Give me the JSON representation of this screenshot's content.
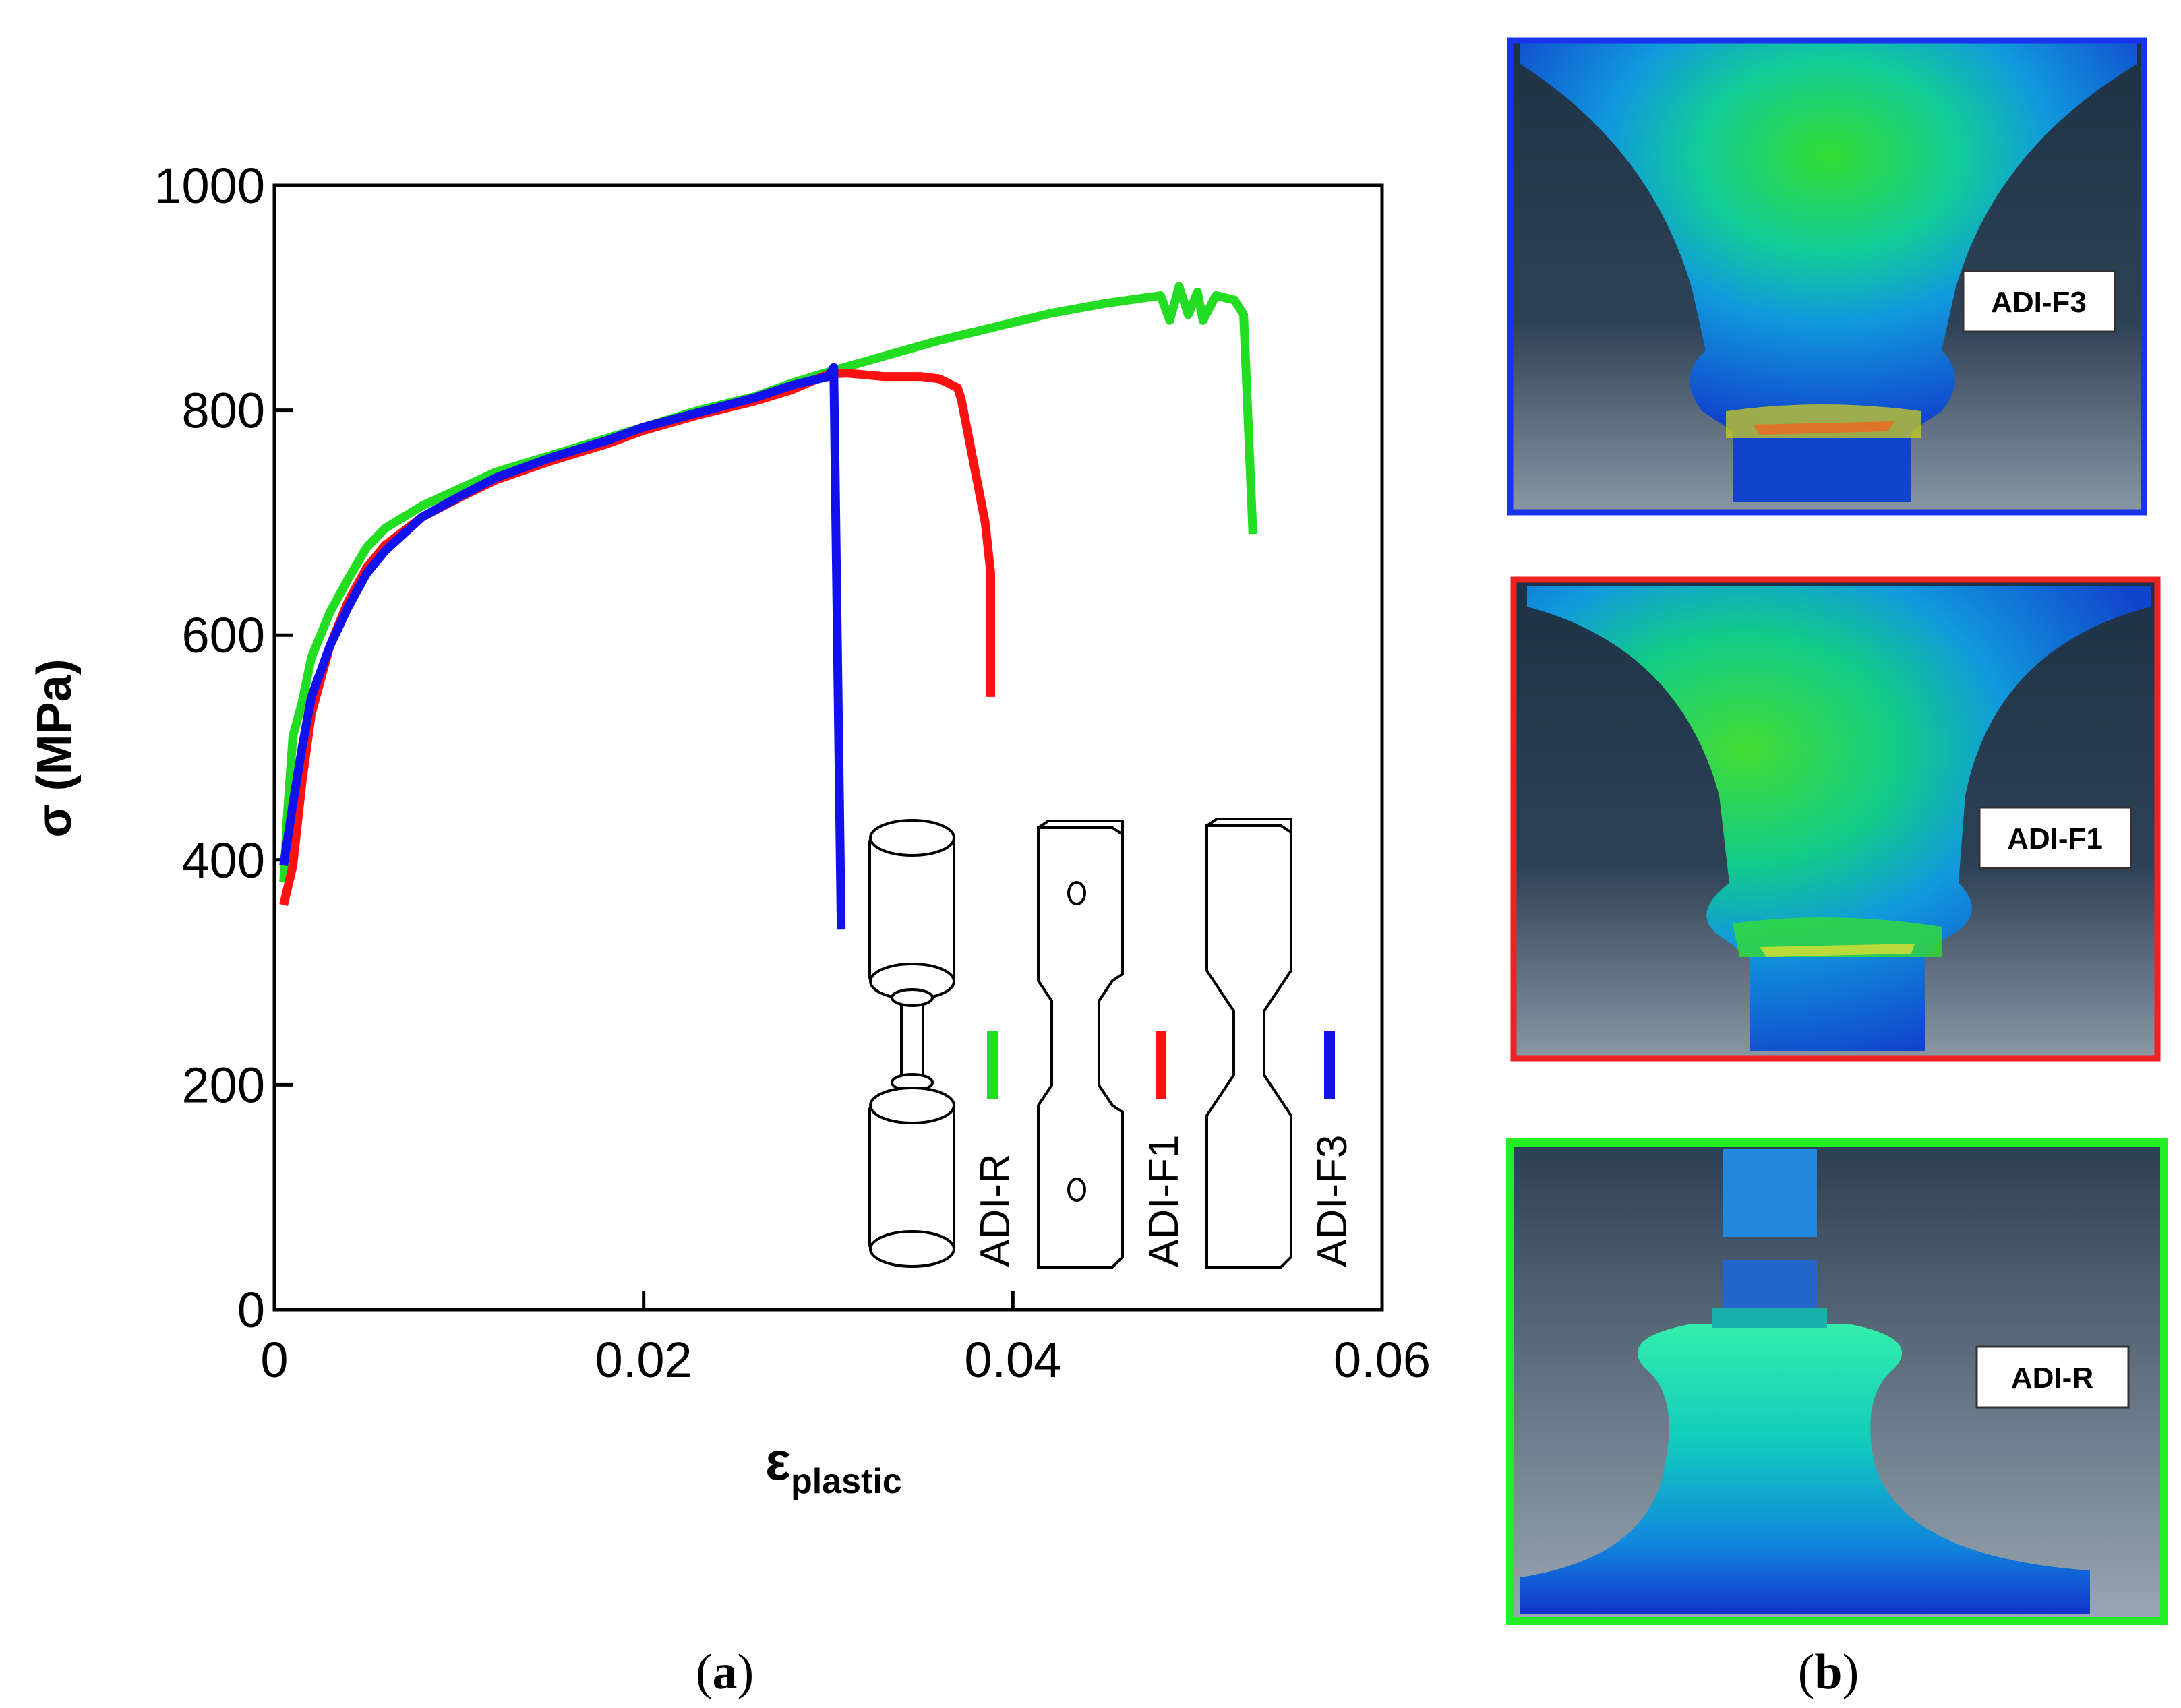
{
  "chart_data": {
    "type": "line",
    "xlabel": "ε",
    "xlabel_sub": "plastic",
    "ylabel": "σ (MPa)",
    "xlim": [
      0,
      0.06
    ],
    "ylim": [
      0,
      1000
    ],
    "x_ticks": [
      0,
      0.02,
      0.04,
      0.06
    ],
    "x_tick_labels": [
      "0",
      "0.02",
      "0.04",
      "0.06"
    ],
    "y_ticks": [
      0,
      200,
      400,
      600,
      800,
      1000
    ],
    "y_tick_labels": [
      "0",
      "200",
      "400",
      "600",
      "800",
      "1000"
    ],
    "grid": false,
    "series": [
      {
        "name": "ADI-R",
        "color": "#22dd22",
        "points": [
          [
            0.0005,
            380
          ],
          [
            0.0007,
            440
          ],
          [
            0.001,
            510
          ],
          [
            0.0015,
            540
          ],
          [
            0.002,
            580
          ],
          [
            0.003,
            620
          ],
          [
            0.004,
            650
          ],
          [
            0.005,
            678
          ],
          [
            0.006,
            695
          ],
          [
            0.008,
            715
          ],
          [
            0.01,
            730
          ],
          [
            0.012,
            745
          ],
          [
            0.015,
            760
          ],
          [
            0.018,
            775
          ],
          [
            0.02,
            785
          ],
          [
            0.023,
            800
          ],
          [
            0.026,
            812
          ],
          [
            0.028,
            824
          ],
          [
            0.03,
            834
          ],
          [
            0.033,
            848
          ],
          [
            0.036,
            862
          ],
          [
            0.039,
            874
          ],
          [
            0.042,
            886
          ],
          [
            0.045,
            895
          ],
          [
            0.048,
            902
          ],
          [
            0.0485,
            880
          ],
          [
            0.049,
            910
          ],
          [
            0.0495,
            885
          ],
          [
            0.05,
            905
          ],
          [
            0.0503,
            880
          ],
          [
            0.051,
            902
          ],
          [
            0.052,
            898
          ],
          [
            0.0525,
            885
          ],
          [
            0.053,
            690
          ]
        ]
      },
      {
        "name": "ADI-F1",
        "color": "#ff1111",
        "points": [
          [
            0.0005,
            360
          ],
          [
            0.001,
            395
          ],
          [
            0.0015,
            470
          ],
          [
            0.002,
            530
          ],
          [
            0.003,
            590
          ],
          [
            0.004,
            630
          ],
          [
            0.005,
            660
          ],
          [
            0.006,
            680
          ],
          [
            0.008,
            705
          ],
          [
            0.01,
            722
          ],
          [
            0.012,
            738
          ],
          [
            0.015,
            755
          ],
          [
            0.018,
            770
          ],
          [
            0.02,
            782
          ],
          [
            0.023,
            796
          ],
          [
            0.026,
            808
          ],
          [
            0.028,
            818
          ],
          [
            0.029,
            825
          ],
          [
            0.03,
            832
          ],
          [
            0.031,
            833
          ],
          [
            0.033,
            830
          ],
          [
            0.035,
            830
          ],
          [
            0.036,
            828
          ],
          [
            0.037,
            820
          ],
          [
            0.0372,
            810
          ],
          [
            0.0385,
            700
          ],
          [
            0.0388,
            655
          ],
          [
            0.0388,
            545
          ]
        ]
      },
      {
        "name": "ADI-F3",
        "color": "#1111ee",
        "points": [
          [
            0.0005,
            395
          ],
          [
            0.001,
            450
          ],
          [
            0.0015,
            500
          ],
          [
            0.002,
            545
          ],
          [
            0.003,
            590
          ],
          [
            0.004,
            625
          ],
          [
            0.005,
            655
          ],
          [
            0.006,
            675
          ],
          [
            0.008,
            705
          ],
          [
            0.01,
            723
          ],
          [
            0.012,
            740
          ],
          [
            0.015,
            758
          ],
          [
            0.018,
            773
          ],
          [
            0.02,
            785
          ],
          [
            0.023,
            798
          ],
          [
            0.026,
            811
          ],
          [
            0.028,
            822
          ],
          [
            0.029,
            826
          ],
          [
            0.03,
            830
          ],
          [
            0.0303,
            838
          ],
          [
            0.0307,
            338
          ]
        ]
      }
    ],
    "inset_labels": [
      "ADI-R",
      "ADI-F1",
      "ADI-F3"
    ],
    "panel_caption": "a"
  },
  "panel_b": {
    "panel_caption": "b",
    "simulations": [
      {
        "label": "ADI-F3",
        "border_color": "#1a33ee"
      },
      {
        "label": "ADI-F1",
        "border_color": "#ee2222"
      },
      {
        "label": "ADI-R",
        "border_color": "#22ee22"
      }
    ]
  }
}
